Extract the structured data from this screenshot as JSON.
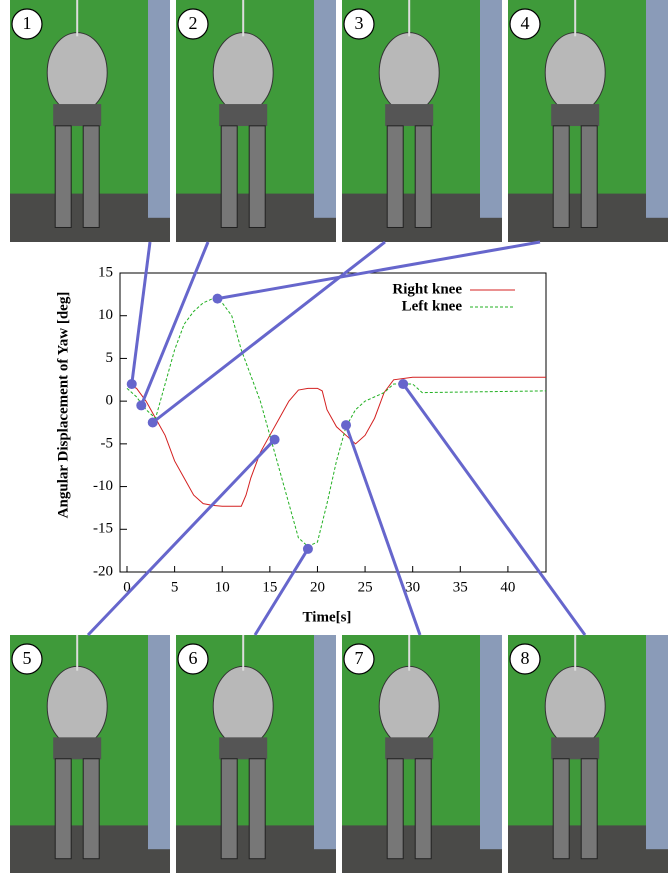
{
  "chart_data": {
    "type": "line",
    "x_label": "Time[s]",
    "y_label": "Angular Displacement of Yaw [deg]",
    "xlim": [
      0,
      44
    ],
    "xticks": [
      0,
      5,
      10,
      15,
      20,
      25,
      30,
      35,
      40
    ],
    "ylim": [
      -20,
      15
    ],
    "yticks": [
      -20,
      -15,
      -10,
      -5,
      0,
      5,
      10,
      15
    ],
    "legend": "top-right",
    "series": [
      {
        "name": "Right knee",
        "color": "#d42020",
        "dash": false,
        "x": [
          0,
          1,
          2,
          3,
          4,
          5,
          6,
          7,
          8,
          9,
          10,
          12,
          12.5,
          13,
          14,
          15,
          16,
          17,
          18,
          19,
          20,
          20.5,
          21,
          22,
          23,
          24,
          25,
          26,
          27,
          28,
          30,
          44
        ],
        "values": [
          2,
          1.5,
          0,
          -2,
          -4,
          -7,
          -9,
          -11,
          -12,
          -12.2,
          -12.3,
          -12.3,
          -11,
          -9,
          -6,
          -4,
          -2,
          0,
          1.3,
          1.5,
          1.5,
          1.2,
          -1,
          -3,
          -4,
          -5,
          -4,
          -2,
          1,
          2.5,
          2.8,
          2.8
        ]
      },
      {
        "name": "Left knee",
        "color": "#22b022",
        "dash": true,
        "x": [
          0,
          1,
          2,
          3,
          4,
          5,
          6,
          7,
          8,
          9,
          10,
          11,
          12,
          13,
          14,
          15,
          16,
          17,
          18,
          19,
          20,
          21,
          22,
          23,
          24,
          25,
          26,
          27,
          28,
          30,
          31,
          44
        ],
        "values": [
          1.5,
          0.5,
          -1,
          -2,
          2,
          6,
          9,
          10.5,
          11.5,
          12,
          11.5,
          10,
          6,
          3,
          0,
          -4,
          -8,
          -12,
          -16,
          -17,
          -16.5,
          -12,
          -7,
          -3,
          -1,
          0,
          0.5,
          1,
          2,
          2,
          1,
          1.2
        ]
      }
    ],
    "highlight_points": {
      "x": [
        0.5,
        1.5,
        2.7,
        9.5,
        15.5,
        19,
        23,
        29
      ],
      "values": [
        2,
        -0.5,
        -2.5,
        12,
        -4.5,
        -17.3,
        -2.8,
        2
      ],
      "color": "#6666cc"
    }
  },
  "panels": {
    "labels": [
      "1",
      "2",
      "3",
      "4",
      "5",
      "6",
      "7",
      "8"
    ]
  }
}
